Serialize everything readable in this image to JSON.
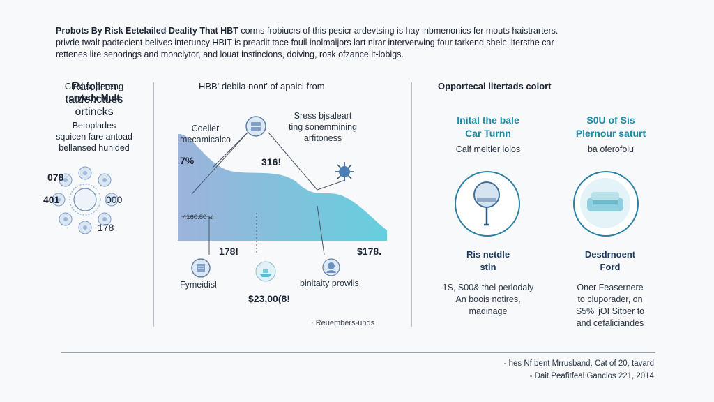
{
  "header": {
    "lead": "Probots By Risk Eetelailed Deality That HBT",
    "line1_rest": " corms frobiucrs of this pesicr ardevtsing is hay inbmenonics fer mouts haistrarters.",
    "line2": "privde twalt padtecient belives interuncy HBIT is preadit tace fouil inolmaijors lart nirar interverwing four tarkend sheic litersthe car",
    "line3": "rettenes lire senorings and monclytor, and louat instincions, doiving, rosk ofzance it-lobigs."
  },
  "left": {
    "title_line1": "Clral sppereng",
    "title_line2": "cryody Mult",
    "desc_line1": "Betoplades",
    "desc_line2": "squicen fare antoad",
    "desc_line3": "bellansed hunided",
    "ring": {
      "top_left": "078",
      "left": "401",
      "right": "000",
      "bottom_right": "178"
    },
    "foot_line1": "Rafellren",
    "foot_line2": "tatdenctues",
    "foot_line3": "ortincks"
  },
  "middle": {
    "title": "HBB' debila nont' of apaicl from",
    "callout_left_line1": "Coeller",
    "callout_left_line2": "mecamicalco",
    "callout_right_line1": "Sress bjsaleart",
    "callout_right_line2": "ting sonemmining",
    "callout_right_line3": "arfitoness",
    "pct_left": "7%",
    "value_top": "316!",
    "axis_note": "4160.80 ah",
    "value_bottom_left": "178!",
    "value_bottom_right": "$178.",
    "label_left": "Fymeidisl",
    "label_right": "binitaity prowlis",
    "value_center": "$23,00(8!",
    "footnote": "· Reuembers-unds"
  },
  "right": {
    "title": "Opportecal litertads colort",
    "col1": {
      "heading_line1": "Inital the bale",
      "heading_line2": "Car Turnn",
      "sub": "Calf meltler iolos",
      "name_line1": "Ris netdle",
      "name_line2": "stin",
      "para_line1": "1S, S00& thel perlodaly",
      "para_line2": "An boois notires,",
      "para_line3": "madinage"
    },
    "col2": {
      "heading_line1": "S0U of Sis",
      "heading_line2": "Plernour saturt",
      "sub": "ba oferofolu",
      "name_line1": "Desdrnoent",
      "name_line2": "Ford",
      "para_line1": "Oner Feasernere",
      "para_line2": "to cluporader, on",
      "para_line3": "S5%' jOI Sitber to",
      "para_line4": "and cefaliciandes"
    }
  },
  "credits": {
    "line1": "- hes Nf bent Mrrusband, Cat of 20, tavard",
    "line2": "- Dait Peafitfeal Ganclos 221, 2014"
  },
  "colors": {
    "accent": "#1a8aa6",
    "ring": "#2a7fa5",
    "area_start": "#8ea7d6",
    "area_end": "#4cc7d8"
  },
  "icons": [
    "ring-diagram-icon",
    "server-icon",
    "virus-icon",
    "document-icon",
    "boat-icon",
    "globe-icon",
    "magnifier-icon",
    "car-icon"
  ]
}
